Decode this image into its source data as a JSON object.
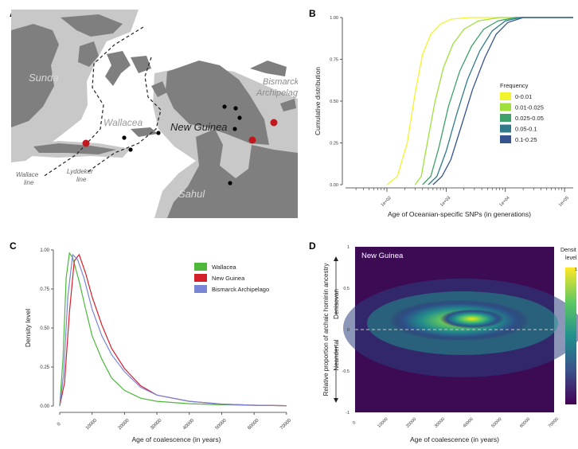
{
  "colors": {
    "sea": "#ffffff",
    "shelf": "#c8c8c8",
    "land": "#7f7f7f",
    "site": "#000000",
    "site_highlight": "#c0181d"
  },
  "panel_labels": [
    "A",
    "B",
    "C",
    "D"
  ],
  "map": {
    "labels": {
      "sunda": "Sunda",
      "wallacea": "Wallacea",
      "new_guinea": "New Guinea",
      "bismarck": "Bismarck",
      "archipelago": "Archipelago",
      "sahul": "Sahul",
      "wallace_1": "Wallace",
      "wallace_2": "line",
      "lyddeker_1": "Lyddeker",
      "lyddeker_2": "line"
    }
  },
  "chart_data": [
    {
      "panel": "B",
      "type": "line",
      "xlabel": "Age of Oceanian-specific SNPs (in generations)",
      "ylabel": "Cumulative distribution",
      "x_scale": "log10",
      "xlim": [
        20,
        140000
      ],
      "ylim": [
        0,
        1
      ],
      "x_ticks": [
        "1e+02",
        "1e+03",
        "1e+04",
        "1e+05"
      ],
      "y_ticks": [
        "0.00",
        "0.25",
        "0.50",
        "0.75",
        "1.00"
      ],
      "legend_title": "Frequency",
      "legend_position": "right",
      "grid": false,
      "series": [
        {
          "name": "0-0.01",
          "color": "#f1f32c",
          "points": [
            [
              100,
              0.0
            ],
            [
              150,
              0.05
            ],
            [
              220,
              0.25
            ],
            [
              300,
              0.55
            ],
            [
              400,
              0.78
            ],
            [
              550,
              0.9
            ],
            [
              800,
              0.96
            ],
            [
              1200,
              0.99
            ],
            [
              2500,
              1.0
            ],
            [
              140000,
              1.0
            ]
          ]
        },
        {
          "name": "0.01-0.025",
          "color": "#a0e03c",
          "points": [
            [
              300,
              0.0
            ],
            [
              380,
              0.05
            ],
            [
              480,
              0.25
            ],
            [
              650,
              0.5
            ],
            [
              900,
              0.7
            ],
            [
              1300,
              0.84
            ],
            [
              2000,
              0.93
            ],
            [
              3500,
              0.98
            ],
            [
              8000,
              1.0
            ],
            [
              140000,
              1.0
            ]
          ]
        },
        {
          "name": "0.025-0.05",
          "color": "#3fa16a",
          "points": [
            [
              400,
              0.0
            ],
            [
              550,
              0.05
            ],
            [
              750,
              0.22
            ],
            [
              1100,
              0.47
            ],
            [
              1700,
              0.68
            ],
            [
              2700,
              0.83
            ],
            [
              4300,
              0.93
            ],
            [
              7500,
              0.98
            ],
            [
              15000,
              1.0
            ],
            [
              140000,
              1.0
            ]
          ]
        },
        {
          "name": "0.05-0.1",
          "color": "#2f7b8c",
          "points": [
            [
              500,
              0.0
            ],
            [
              700,
              0.05
            ],
            [
              1000,
              0.2
            ],
            [
              1500,
              0.42
            ],
            [
              2300,
              0.63
            ],
            [
              3700,
              0.8
            ],
            [
              6000,
              0.92
            ],
            [
              10000,
              0.98
            ],
            [
              18000,
              1.0
            ],
            [
              140000,
              1.0
            ]
          ]
        },
        {
          "name": "0.1-0.25",
          "color": "#35548f",
          "points": [
            [
              600,
              0.0
            ],
            [
              850,
              0.05
            ],
            [
              1200,
              0.15
            ],
            [
              1800,
              0.35
            ],
            [
              2800,
              0.57
            ],
            [
              4500,
              0.76
            ],
            [
              7000,
              0.9
            ],
            [
              11000,
              0.97
            ],
            [
              20000,
              1.0
            ],
            [
              140000,
              1.0
            ]
          ]
        }
      ]
    },
    {
      "panel": "C",
      "type": "line",
      "xlabel": "Age of coalescence (in years)",
      "ylabel": "Density level",
      "xlim": [
        0,
        72000
      ],
      "ylim": [
        0,
        1
      ],
      "x_ticks": [
        "0",
        "10000",
        "20000",
        "30000",
        "40000",
        "50000",
        "60000",
        "70000"
      ],
      "y_ticks": [
        "0.00",
        "0.25",
        "0.50",
        "0.75",
        "1.00"
      ],
      "legend_position": "top-right",
      "grid": false,
      "series": [
        {
          "name": "Wallacea",
          "color": "#4db83a",
          "points": [
            [
              0,
              0.0
            ],
            [
              1000,
              0.3
            ],
            [
              2000,
              0.82
            ],
            [
              3000,
              0.98
            ],
            [
              4000,
              0.95
            ],
            [
              6000,
              0.8
            ],
            [
              8000,
              0.62
            ],
            [
              10000,
              0.45
            ],
            [
              13000,
              0.3
            ],
            [
              16000,
              0.18
            ],
            [
              20000,
              0.1
            ],
            [
              25000,
              0.05
            ],
            [
              30000,
              0.03
            ],
            [
              40000,
              0.015
            ],
            [
              50000,
              0.008
            ],
            [
              60000,
              0.004
            ],
            [
              70000,
              0.002
            ]
          ]
        },
        {
          "name": "New Guinea",
          "color": "#d4202a",
          "points": [
            [
              0,
              0.0
            ],
            [
              1500,
              0.15
            ],
            [
              3000,
              0.6
            ],
            [
              4500,
              0.93
            ],
            [
              6000,
              0.97
            ],
            [
              8000,
              0.85
            ],
            [
              10000,
              0.7
            ],
            [
              13000,
              0.52
            ],
            [
              16000,
              0.37
            ],
            [
              20000,
              0.24
            ],
            [
              25000,
              0.13
            ],
            [
              30000,
              0.07
            ],
            [
              40000,
              0.03
            ],
            [
              50000,
              0.012
            ],
            [
              60000,
              0.005
            ],
            [
              70000,
              0.002
            ]
          ]
        },
        {
          "name": "Bismarck Archipelago",
          "color": "#7986d6",
          "points": [
            [
              0,
              0.0
            ],
            [
              1200,
              0.2
            ],
            [
              2500,
              0.7
            ],
            [
              4000,
              0.97
            ],
            [
              5500,
              0.94
            ],
            [
              7500,
              0.82
            ],
            [
              10000,
              0.62
            ],
            [
              13000,
              0.45
            ],
            [
              16000,
              0.33
            ],
            [
              20000,
              0.22
            ],
            [
              25000,
              0.12
            ],
            [
              30000,
              0.07
            ],
            [
              40000,
              0.03
            ],
            [
              50000,
              0.012
            ],
            [
              60000,
              0.005
            ],
            [
              70000,
              0.002
            ]
          ]
        }
      ]
    },
    {
      "panel": "D",
      "type": "heatmap",
      "title": "New Guinea",
      "xlabel": "Age of coalescence (in years)",
      "ylabel": "Relative proportion of archaic hominin ancestry",
      "y_arrow_up": "Denisovan",
      "y_arrow_down": "Neandertal",
      "xlim": [
        0,
        70000
      ],
      "ylim": [
        -1,
        1
      ],
      "x_ticks": [
        "0",
        "10000",
        "20000",
        "30000",
        "40000",
        "50000",
        "60000",
        "70000"
      ],
      "y_ticks": [
        "1",
        "0.5",
        "0",
        "-0.5",
        "-1"
      ],
      "colorbar_label_1": "Densit",
      "colorbar_label_2": "level",
      "colorbar_tick": "1",
      "colormap": "viridis",
      "peak": {
        "x": 40000,
        "y": 0.13
      },
      "reference_line_y": 0
    }
  ]
}
